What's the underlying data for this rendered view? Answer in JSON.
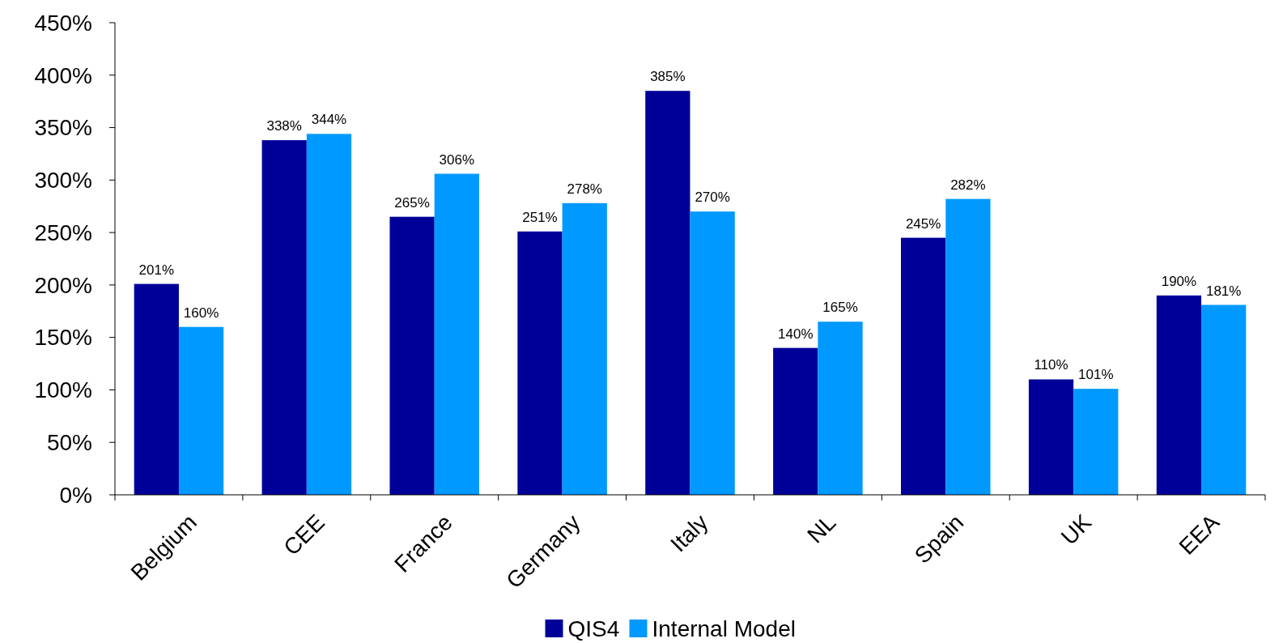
{
  "chart_data": {
    "type": "bar",
    "categories": [
      "Belgium",
      "CEE",
      "France",
      "Germany",
      "Italy",
      "NL",
      "Spain",
      "UK",
      "EEA"
    ],
    "series": [
      {
        "name": "QIS4",
        "color": "#000099",
        "values": [
          201,
          338,
          265,
          251,
          385,
          140,
          245,
          110,
          190
        ],
        "value_labels": [
          "201%",
          "338%",
          "265%",
          "251%",
          "385%",
          "140%",
          "245%",
          "110%",
          "190%"
        ]
      },
      {
        "name": "Internal Model",
        "color": "#0099ff",
        "values": [
          160,
          344,
          306,
          278,
          270,
          165,
          282,
          101,
          181
        ],
        "value_labels": [
          "160%",
          "344%",
          "306%",
          "278%",
          "270%",
          "165%",
          "282%",
          "101%",
          "181%"
        ]
      }
    ],
    "ylim": [
      0,
      450
    ],
    "yticks": [
      {
        "value": 0,
        "label": "0%"
      },
      {
        "value": 50,
        "label": "50%"
      },
      {
        "value": 100,
        "label": "100%"
      },
      {
        "value": 150,
        "label": "150%"
      },
      {
        "value": 200,
        "label": "200%"
      },
      {
        "value": 250,
        "label": "250%"
      },
      {
        "value": 300,
        "label": "300%"
      },
      {
        "value": 350,
        "label": "350%"
      },
      {
        "value": 400,
        "label": "400%"
      },
      {
        "value": 450,
        "label": "450%"
      }
    ],
    "legend": "bottom"
  }
}
